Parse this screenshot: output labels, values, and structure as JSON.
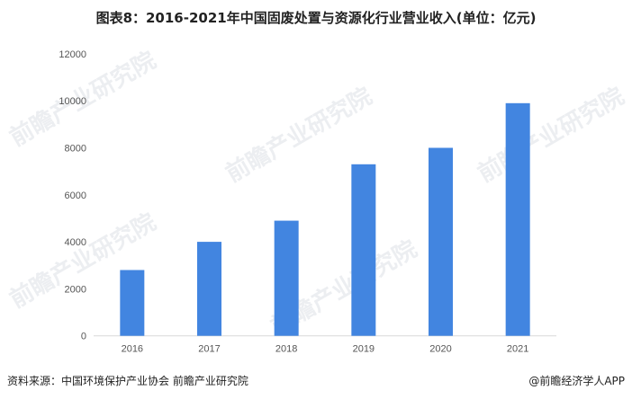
{
  "chart_data": {
    "type": "bar",
    "title": "图表8：2016-2021年中国固废处置与资源化行业营业收入(单位：亿元)",
    "categories": [
      "2016",
      "2017",
      "2018",
      "2019",
      "2020",
      "2021"
    ],
    "values": [
      2800,
      4000,
      4900,
      7300,
      8000,
      9900
    ],
    "yticks": [
      0,
      2000,
      4000,
      6000,
      8000,
      10000,
      12000
    ],
    "ylim": [
      0,
      12000
    ],
    "xlabel": "",
    "ylabel": "",
    "grid": false,
    "bar_color": "#4285E0"
  },
  "footer": {
    "source": "资料来源：中国环境保护产业协会 前瞻产业研究院",
    "brand": "@前瞻经济学人APP"
  },
  "watermark": "前瞻产业研究院"
}
